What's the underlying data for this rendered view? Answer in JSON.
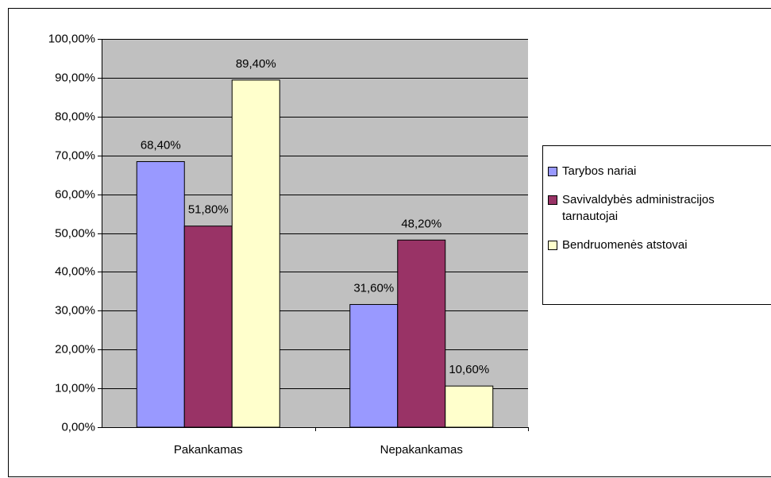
{
  "chart_data": {
    "type": "bar",
    "categories": [
      "Pakankamas",
      "Nepakankamas"
    ],
    "series": [
      {
        "name": "Tarybos nariai",
        "color": "#9999ff",
        "values": [
          68.4,
          31.6
        ],
        "value_labels": [
          "68,40%",
          "31,60%"
        ]
      },
      {
        "name": "Savivaldybės administracijos tarnautojai",
        "color": "#993366",
        "values": [
          51.8,
          48.2
        ],
        "value_labels": [
          "51,80%",
          "48,20%"
        ]
      },
      {
        "name": "Bendruomenės atstovai",
        "color": "#ffffcc",
        "values": [
          89.4,
          10.6
        ],
        "value_labels": [
          "89,40%",
          "10,60%"
        ]
      }
    ],
    "ylim": [
      0,
      100
    ],
    "yticks": [
      {
        "value": 0,
        "label": "0,00%"
      },
      {
        "value": 10,
        "label": "10,00%"
      },
      {
        "value": 20,
        "label": "20,00%"
      },
      {
        "value": 30,
        "label": "30,00%"
      },
      {
        "value": 40,
        "label": "40,00%"
      },
      {
        "value": 50,
        "label": "50,00%"
      },
      {
        "value": 60,
        "label": "60,00%"
      },
      {
        "value": 70,
        "label": "70,00%"
      },
      {
        "value": 80,
        "label": "80,00%"
      },
      {
        "value": 90,
        "label": "90,00%"
      },
      {
        "value": 100,
        "label": "100,00%"
      }
    ],
    "grid": true,
    "plot_background": "#c0c0c0",
    "legend": "right"
  }
}
